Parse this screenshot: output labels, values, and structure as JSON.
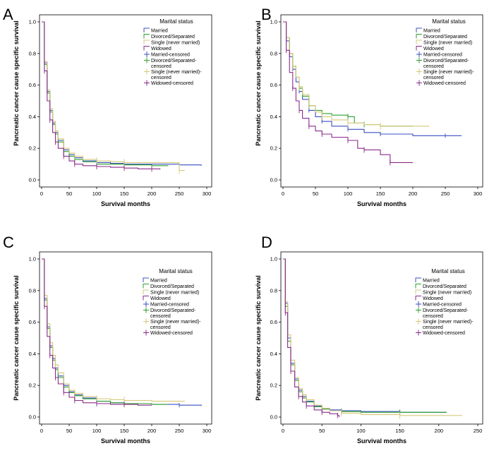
{
  "chart_data": [
    {
      "panel": "A",
      "type": "line",
      "ylabel": "Pancreatic cancer cause specific survival",
      "xlabel": "Survival months",
      "xlim": [
        0,
        300
      ],
      "ylim": [
        0,
        1.0
      ],
      "xticks": [
        0,
        50,
        100,
        150,
        200,
        250,
        300
      ],
      "yticks": [
        0.0,
        0.2,
        0.4,
        0.6,
        0.8,
        1.0
      ],
      "legend": {
        "title": "Marital status",
        "entries": [
          "Married",
          "Divorced/Separated",
          "Single (never married)",
          "Widowed",
          "Married-censored",
          "Divorced/Separated-censored",
          "Single (never married)-censored",
          "Widowed-censored"
        ]
      },
      "series": [
        {
          "name": "Married",
          "color": "#3b4fc4",
          "x": [
            0,
            5,
            10,
            15,
            20,
            25,
            30,
            40,
            50,
            60,
            75,
            100,
            125,
            150,
            200,
            250,
            290
          ],
          "y": [
            1.0,
            0.74,
            0.56,
            0.44,
            0.36,
            0.3,
            0.25,
            0.19,
            0.16,
            0.14,
            0.12,
            0.11,
            0.105,
            0.1,
            0.1,
            0.095,
            0.09
          ]
        },
        {
          "name": "Divorced/Separated",
          "color": "#2ca02c",
          "x": [
            0,
            5,
            10,
            15,
            20,
            25,
            30,
            40,
            50,
            60,
            75,
            100,
            125,
            150,
            200,
            230
          ],
          "y": [
            1.0,
            0.73,
            0.55,
            0.43,
            0.35,
            0.29,
            0.24,
            0.18,
            0.15,
            0.13,
            0.115,
            0.1,
            0.1,
            0.095,
            0.09,
            0.09
          ]
        },
        {
          "name": "Single (never married)",
          "color": "#d6c87a",
          "x": [
            0,
            5,
            10,
            15,
            20,
            25,
            30,
            40,
            50,
            60,
            75,
            100,
            125,
            150,
            200,
            250,
            260
          ],
          "y": [
            1.0,
            0.75,
            0.57,
            0.45,
            0.37,
            0.31,
            0.26,
            0.2,
            0.17,
            0.15,
            0.13,
            0.12,
            0.115,
            0.11,
            0.11,
            0.06,
            0.06
          ]
        },
        {
          "name": "Widowed",
          "color": "#8b2a8b",
          "x": [
            0,
            5,
            10,
            15,
            20,
            25,
            30,
            40,
            50,
            60,
            75,
            100,
            125,
            150,
            175,
            200,
            215
          ],
          "y": [
            1.0,
            0.69,
            0.5,
            0.38,
            0.3,
            0.24,
            0.2,
            0.15,
            0.12,
            0.1,
            0.09,
            0.085,
            0.08,
            0.075,
            0.07,
            0.07,
            0.065
          ]
        }
      ]
    },
    {
      "panel": "B",
      "type": "line",
      "ylabel": "Pancreatic cancer cause specific survival",
      "xlabel": "Survival months",
      "xlim": [
        0,
        300
      ],
      "ylim": [
        0,
        1.0
      ],
      "xticks": [
        0,
        50,
        100,
        150,
        200,
        250,
        300
      ],
      "yticks": [
        0.0,
        0.2,
        0.4,
        0.6,
        0.8,
        1.0
      ],
      "legend": {
        "title": "Marital status",
        "entries": [
          "Married",
          "Divorced/Separated",
          "Single (never married)",
          "Widowed",
          "Married-censored",
          "Divorced/Separated-censored",
          "Single (never married)-censored",
          "Widowed-censored"
        ]
      },
      "series": [
        {
          "name": "Married",
          "color": "#3b4fc4",
          "x": [
            0,
            5,
            10,
            15,
            20,
            25,
            30,
            40,
            50,
            60,
            75,
            100,
            125,
            150,
            200,
            250,
            275
          ],
          "y": [
            1.0,
            0.88,
            0.78,
            0.7,
            0.62,
            0.56,
            0.51,
            0.44,
            0.4,
            0.37,
            0.34,
            0.32,
            0.3,
            0.29,
            0.28,
            0.28,
            0.28
          ]
        },
        {
          "name": "Divorced/Separated",
          "color": "#2ca02c",
          "x": [
            0,
            5,
            10,
            15,
            20,
            25,
            30,
            40,
            50,
            60,
            75,
            100,
            110,
            125,
            150,
            200
          ],
          "y": [
            1.0,
            0.9,
            0.8,
            0.72,
            0.65,
            0.58,
            0.53,
            0.47,
            0.44,
            0.42,
            0.41,
            0.4,
            0.36,
            0.35,
            0.34,
            0.34
          ]
        },
        {
          "name": "Single (never married)",
          "color": "#d6c87a",
          "x": [
            0,
            5,
            10,
            15,
            20,
            25,
            30,
            40,
            50,
            60,
            75,
            100,
            125,
            150,
            200,
            225
          ],
          "y": [
            1.0,
            0.9,
            0.8,
            0.72,
            0.65,
            0.59,
            0.54,
            0.47,
            0.43,
            0.4,
            0.38,
            0.36,
            0.35,
            0.34,
            0.34,
            0.34
          ]
        },
        {
          "name": "Widowed",
          "color": "#8b2a8b",
          "x": [
            0,
            5,
            10,
            15,
            20,
            25,
            30,
            40,
            50,
            60,
            75,
            100,
            115,
            125,
            150,
            165,
            200
          ],
          "y": [
            1.0,
            0.82,
            0.68,
            0.58,
            0.5,
            0.44,
            0.39,
            0.34,
            0.31,
            0.29,
            0.27,
            0.25,
            0.2,
            0.19,
            0.16,
            0.11,
            0.11
          ]
        }
      ]
    },
    {
      "panel": "C",
      "type": "line",
      "ylabel": "Pancreatic cancer cause specific survival",
      "xlabel": "Survival months",
      "xlim": [
        0,
        300
      ],
      "ylim": [
        0,
        1.0
      ],
      "xticks": [
        0,
        50,
        100,
        150,
        200,
        250,
        300
      ],
      "yticks": [
        0.0,
        0.2,
        0.4,
        0.6,
        0.8,
        1.0
      ],
      "legend": {
        "title": "Marital status",
        "entries": [
          "Married",
          "Divorced/Separated",
          "Single (never married)",
          "Widowed",
          "Married-censored",
          "Divorced/Separated-censored",
          "Single (never married)-censored",
          "Widowed-censored"
        ]
      },
      "series": [
        {
          "name": "Married",
          "color": "#3b4fc4",
          "x": [
            0,
            5,
            10,
            15,
            20,
            25,
            30,
            40,
            50,
            60,
            75,
            100,
            125,
            150,
            200,
            250,
            290
          ],
          "y": [
            1.0,
            0.75,
            0.57,
            0.45,
            0.37,
            0.31,
            0.26,
            0.2,
            0.16,
            0.14,
            0.12,
            0.1,
            0.09,
            0.085,
            0.08,
            0.075,
            0.07
          ]
        },
        {
          "name": "Divorced/Separated",
          "color": "#2ca02c",
          "x": [
            0,
            5,
            10,
            15,
            20,
            25,
            30,
            40,
            50,
            60,
            75,
            100,
            125,
            150,
            200,
            230
          ],
          "y": [
            1.0,
            0.74,
            0.56,
            0.44,
            0.36,
            0.3,
            0.25,
            0.19,
            0.155,
            0.135,
            0.115,
            0.1,
            0.09,
            0.085,
            0.08,
            0.08
          ]
        },
        {
          "name": "Single (never married)",
          "color": "#d6c87a",
          "x": [
            0,
            5,
            10,
            15,
            20,
            25,
            30,
            40,
            50,
            60,
            75,
            100,
            125,
            150,
            200,
            260
          ],
          "y": [
            1.0,
            0.77,
            0.59,
            0.47,
            0.39,
            0.33,
            0.28,
            0.21,
            0.17,
            0.15,
            0.13,
            0.115,
            0.11,
            0.105,
            0.1,
            0.1
          ]
        },
        {
          "name": "Widowed",
          "color": "#8b2a8b",
          "x": [
            0,
            5,
            10,
            15,
            20,
            25,
            30,
            40,
            50,
            60,
            75,
            100,
            125,
            150,
            175,
            200
          ],
          "y": [
            1.0,
            0.7,
            0.51,
            0.39,
            0.31,
            0.25,
            0.21,
            0.155,
            0.125,
            0.105,
            0.09,
            0.085,
            0.08,
            0.08,
            0.075,
            0.075
          ]
        }
      ]
    },
    {
      "panel": "D",
      "type": "line",
      "ylabel": "Pancreatic cancer cause specific survival",
      "xlabel": "Survival months",
      "xlim": [
        0,
        250
      ],
      "ylim": [
        0,
        1.0
      ],
      "xticks": [
        0,
        50,
        100,
        150,
        200,
        250
      ],
      "yticks": [
        0.0,
        0.2,
        0.4,
        0.6,
        0.8,
        1.0
      ],
      "legend": {
        "title": "Marital status",
        "entries": [
          "Married",
          "Divorced/Separated",
          "Single (never married)",
          "Widowed",
          "Married-censored",
          "Divorced/Separated-censored",
          "Single (never married)-censored",
          "Widowed-censored"
        ]
      },
      "series": [
        {
          "name": "Married",
          "color": "#3b4fc4",
          "x": [
            0,
            3,
            6,
            10,
            15,
            20,
            25,
            30,
            40,
            50,
            60,
            75,
            100,
            150,
            210
          ],
          "y": [
            1.0,
            0.72,
            0.5,
            0.34,
            0.24,
            0.17,
            0.13,
            0.1,
            0.07,
            0.055,
            0.045,
            0.04,
            0.035,
            0.03,
            0.03
          ]
        },
        {
          "name": "Divorced/Separated",
          "color": "#2ca02c",
          "x": [
            0,
            3,
            6,
            10,
            15,
            20,
            25,
            30,
            40,
            50,
            60,
            75,
            100,
            150,
            210
          ],
          "y": [
            1.0,
            0.7,
            0.48,
            0.33,
            0.23,
            0.16,
            0.12,
            0.095,
            0.065,
            0.05,
            0.04,
            0.035,
            0.03,
            0.03,
            0.03
          ]
        },
        {
          "name": "Single (never married)",
          "color": "#d6c87a",
          "x": [
            0,
            3,
            6,
            10,
            15,
            20,
            25,
            30,
            40,
            50,
            60,
            75,
            100,
            150,
            230
          ],
          "y": [
            1.0,
            0.73,
            0.52,
            0.36,
            0.25,
            0.18,
            0.14,
            0.11,
            0.075,
            0.055,
            0.04,
            0.025,
            0.015,
            0.01,
            0.01
          ]
        },
        {
          "name": "Widowed",
          "color": "#8b2a8b",
          "x": [
            0,
            3,
            6,
            10,
            15,
            20,
            25,
            30,
            40,
            50,
            60,
            70,
            72
          ],
          "y": [
            1.0,
            0.66,
            0.44,
            0.29,
            0.19,
            0.13,
            0.095,
            0.07,
            0.045,
            0.03,
            0.02,
            0.01,
            0.0
          ]
        }
      ]
    }
  ]
}
